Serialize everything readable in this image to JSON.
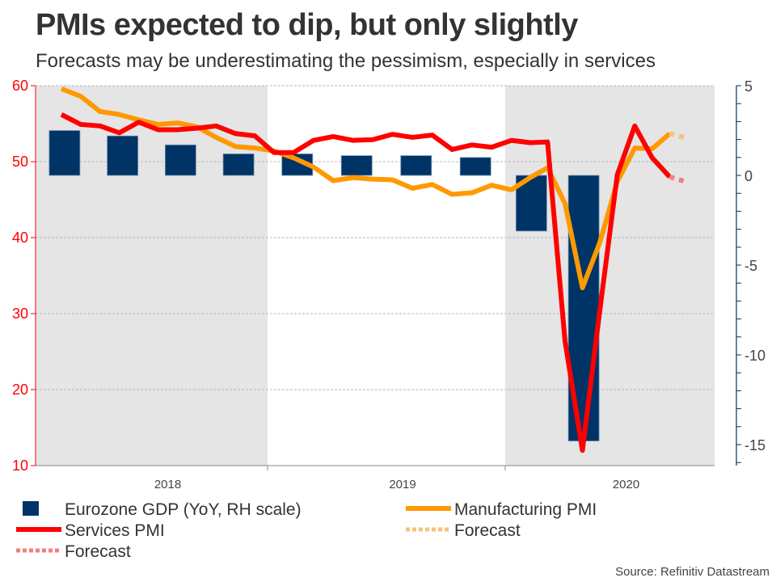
{
  "header": {
    "title": "PMIs expected to dip, but only slightly",
    "subtitle": "Forecasts may be underestimating the pessimism, especially in services"
  },
  "source": "Source: Refinitiv Datastream",
  "chart_data": {
    "type": "bar+line",
    "title": "PMIs expected to dip, but only slightly",
    "subtitle": "Forecasts may be underestimating the pessimism, especially in services",
    "x_labels": [
      "2018",
      "2019",
      "2020"
    ],
    "left_axis": {
      "ylim": [
        10,
        60
      ],
      "ticks": [
        10,
        20,
        30,
        40,
        50,
        60
      ],
      "color": "#ff0000"
    },
    "right_axis": {
      "ylim": [
        -16,
        5
      ],
      "ticks": [
        5,
        0,
        -5,
        -10,
        -15
      ],
      "color": "#003366"
    },
    "shaded_years": [
      "2018",
      "2020"
    ],
    "grid": true,
    "months": [
      "2018-01",
      "2018-02",
      "2018-03",
      "2018-04",
      "2018-05",
      "2018-06",
      "2018-07",
      "2018-08",
      "2018-09",
      "2018-10",
      "2018-11",
      "2018-12",
      "2019-01",
      "2019-02",
      "2019-03",
      "2019-04",
      "2019-05",
      "2019-06",
      "2019-07",
      "2019-08",
      "2019-09",
      "2019-10",
      "2019-11",
      "2019-12",
      "2020-01",
      "2020-02",
      "2020-03",
      "2020-04",
      "2020-05",
      "2020-06",
      "2020-07",
      "2020-08",
      "2020-09"
    ],
    "series": [
      {
        "name": "Eurozone GDP (YoY, RH scale)",
        "type": "bar",
        "axis": "right",
        "color": "#003366",
        "quarters": [
          "2018-Q1",
          "2018-Q2",
          "2018-Q3",
          "2018-Q4",
          "2019-Q1",
          "2019-Q2",
          "2019-Q3",
          "2019-Q4",
          "2020-Q1",
          "2020-Q2"
        ],
        "values": [
          2.5,
          2.2,
          1.7,
          1.2,
          1.2,
          1.1,
          1.1,
          1.0,
          -3.1,
          -14.8
        ]
      },
      {
        "name": "Services PMI",
        "type": "line",
        "axis": "left",
        "color": "#ff0000",
        "values": [
          56.2,
          54.9,
          54.7,
          53.8,
          55.2,
          54.2,
          54.2,
          54.4,
          54.7,
          53.7,
          53.4,
          51.2,
          51.2,
          52.8,
          53.3,
          52.8,
          52.9,
          53.6,
          53.2,
          53.5,
          51.6,
          52.2,
          51.9,
          52.8,
          52.5,
          52.6,
          26.4,
          12.0,
          30.5,
          48.3,
          54.7,
          50.5,
          48.0
        ]
      },
      {
        "name": "Forecast",
        "type": "line-dotted",
        "axis": "left",
        "color": "#f08080",
        "of": "Services PMI",
        "months": [
          "2020-09",
          "2020-10"
        ],
        "values": [
          48.0,
          47.3
        ]
      },
      {
        "name": "Manufacturing PMI",
        "type": "line",
        "axis": "left",
        "color": "#ff9900",
        "values": [
          59.6,
          58.6,
          56.6,
          56.2,
          55.5,
          54.9,
          55.1,
          54.6,
          53.2,
          52.0,
          51.8,
          51.4,
          50.5,
          49.3,
          47.5,
          47.9,
          47.7,
          47.6,
          46.5,
          47.0,
          45.7,
          45.9,
          46.9,
          46.3,
          47.9,
          49.2,
          44.5,
          33.4,
          39.4,
          47.4,
          51.8,
          51.7,
          53.7
        ]
      },
      {
        "name": "Forecast",
        "type": "line-dotted",
        "axis": "left",
        "color": "#f7c27a",
        "of": "Manufacturing PMI",
        "months": [
          "2020-09",
          "2020-10"
        ],
        "values": [
          53.7,
          53.1
        ]
      }
    ],
    "legend": {
      "placement": "bottom",
      "items": [
        {
          "label": "Eurozone GDP (YoY, RH scale)",
          "swatch": "box",
          "color": "#003366"
        },
        {
          "label": "Manufacturing PMI",
          "swatch": "line",
          "color": "#ff9900"
        },
        {
          "label": "Services PMI",
          "swatch": "line",
          "color": "#ff0000"
        },
        {
          "label": "Forecast",
          "swatch": "dotted",
          "color": "#f7c27a"
        },
        {
          "label": "Forecast",
          "swatch": "dotted",
          "color": "#f08080"
        }
      ]
    }
  }
}
